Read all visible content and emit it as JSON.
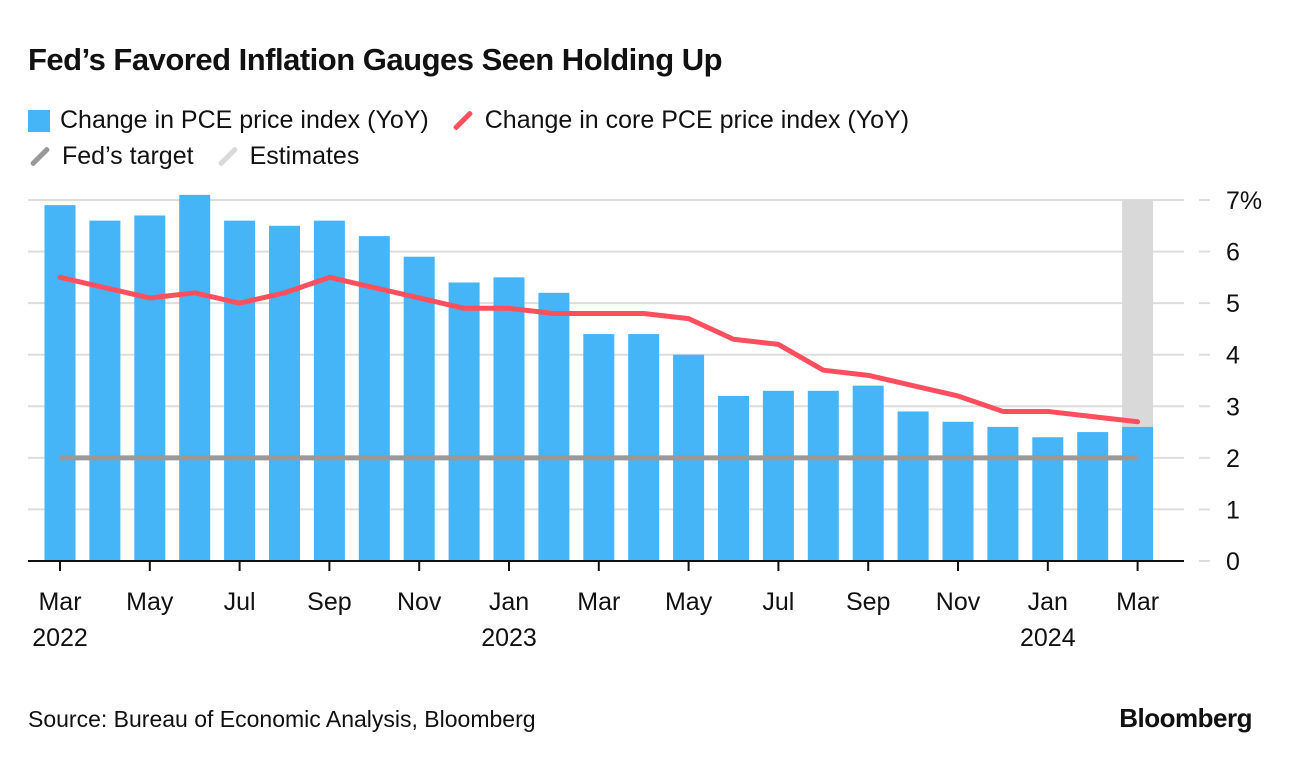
{
  "title": "Fed’s Favored Inflation Gauges Seen Holding Up",
  "legend": [
    {
      "label": "Change in PCE price index (YoY)",
      "color": "#45b5f8",
      "kind": "box"
    },
    {
      "label": "Change in core PCE price index (YoY)",
      "color": "#ff4f5e",
      "kind": "line"
    },
    {
      "label": "Fed’s target",
      "color": "#999999",
      "kind": "line"
    },
    {
      "label": "Estimates",
      "color": "#d9d9d9",
      "kind": "line"
    }
  ],
  "source": "Source: Bureau of Economic Analysis, Bloomberg",
  "logo": "Bloomberg",
  "chart_data": {
    "type": "bar",
    "title": "Fed’s Favored Inflation Gauges Seen Holding Up",
    "x": [
      "2022-03",
      "2022-04",
      "2022-05",
      "2022-06",
      "2022-07",
      "2022-08",
      "2022-09",
      "2022-10",
      "2022-11",
      "2022-12",
      "2023-01",
      "2023-02",
      "2023-03",
      "2023-04",
      "2023-05",
      "2023-06",
      "2023-07",
      "2023-08",
      "2023-09",
      "2023-10",
      "2023-11",
      "2023-12",
      "2024-01",
      "2024-02",
      "2024-03"
    ],
    "x_tick_labels": [
      {
        "month": "Mar",
        "year": "2022",
        "index": 0
      },
      {
        "month": "May",
        "year": "",
        "index": 2
      },
      {
        "month": "Jul",
        "year": "",
        "index": 4
      },
      {
        "month": "Sep",
        "year": "",
        "index": 6
      },
      {
        "month": "Nov",
        "year": "",
        "index": 8
      },
      {
        "month": "Jan",
        "year": "2023",
        "index": 10
      },
      {
        "month": "Mar",
        "year": "",
        "index": 12
      },
      {
        "month": "May",
        "year": "",
        "index": 14
      },
      {
        "month": "Jul",
        "year": "",
        "index": 16
      },
      {
        "month": "Sep",
        "year": "",
        "index": 18
      },
      {
        "month": "Nov",
        "year": "",
        "index": 20
      },
      {
        "month": "Jan",
        "year": "2024",
        "index": 22
      },
      {
        "month": "Mar",
        "year": "",
        "index": 24
      }
    ],
    "series": [
      {
        "name": "Change in PCE price index (YoY)",
        "type": "bar",
        "color": "#45b5f8",
        "values": [
          6.9,
          6.6,
          6.7,
          7.1,
          6.6,
          6.5,
          6.6,
          6.3,
          5.9,
          5.4,
          5.5,
          5.2,
          4.4,
          4.4,
          4.0,
          3.2,
          3.3,
          3.3,
          3.4,
          2.9,
          2.7,
          2.6,
          2.4,
          2.5,
          2.6
        ]
      },
      {
        "name": "Change in core PCE price index (YoY)",
        "type": "line",
        "color": "#ff4f5e",
        "values": [
          5.5,
          5.3,
          5.1,
          5.2,
          5.0,
          5.2,
          5.5,
          5.3,
          5.1,
          4.9,
          4.9,
          4.8,
          4.8,
          4.8,
          4.7,
          4.3,
          4.2,
          3.7,
          3.6,
          3.4,
          3.2,
          2.9,
          2.9,
          2.8,
          2.7
        ]
      },
      {
        "name": "Fed’s target",
        "type": "line",
        "color": "#999999",
        "value": 2
      }
    ],
    "estimates": {
      "name": "Estimates",
      "range": [
        "2024-03",
        "2024-03"
      ],
      "color": "#d9d9d9"
    },
    "yticks": [
      "0",
      "1",
      "2",
      "3",
      "4",
      "5",
      "6",
      "7%"
    ],
    "ylim": [
      0,
      7
    ],
    "y_axis_side": "right",
    "grid": true,
    "legend_position": "top-left"
  }
}
